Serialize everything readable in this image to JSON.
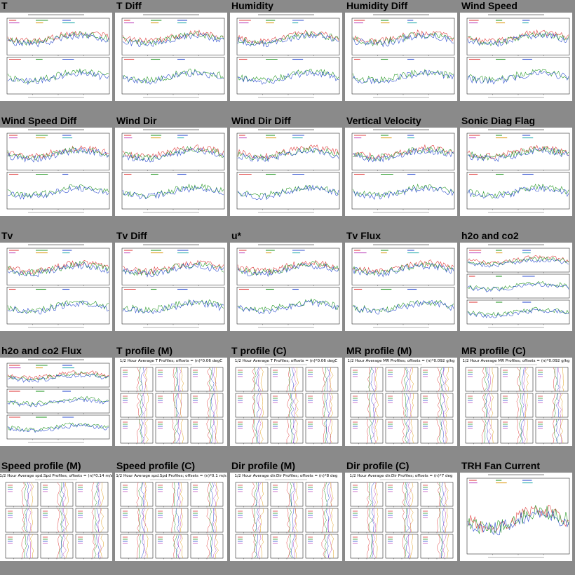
{
  "panels": [
    {
      "title": "T",
      "kind": "ts2"
    },
    {
      "title": "T Diff",
      "kind": "ts2"
    },
    {
      "title": "Humidity",
      "kind": "ts2"
    },
    {
      "title": "Humidity Diff",
      "kind": "ts2"
    },
    {
      "title": "Wind Speed",
      "kind": "ts2"
    },
    {
      "title": "Wind Speed Diff",
      "kind": "ts2"
    },
    {
      "title": "Wind Dir",
      "kind": "ts2"
    },
    {
      "title": "Wind Dir Diff",
      "kind": "ts2"
    },
    {
      "title": "Vertical Velocity",
      "kind": "ts2"
    },
    {
      "title": "Sonic Diag Flag",
      "kind": "ts2"
    },
    {
      "title": "Tv",
      "kind": "ts2"
    },
    {
      "title": "Tv Diff",
      "kind": "ts2"
    },
    {
      "title": "u*",
      "kind": "ts2"
    },
    {
      "title": "Tv Flux",
      "kind": "ts2"
    },
    {
      "title": "h2o and co2",
      "kind": "ts3"
    },
    {
      "title": "h2o and co2 Flux",
      "kind": "ts3"
    },
    {
      "title": "T profile (M)",
      "kind": "profile",
      "header": "1/2 Hour Average T Profiles; offsets = (n)*0.06 degC"
    },
    {
      "title": "T profile (C)",
      "kind": "profile",
      "header": "1/2 Hour Average T Profiles; offsets = (n)*0.06 degC"
    },
    {
      "title": "MR profile (M)",
      "kind": "profile",
      "header": "1/2 Hour Average MR Profiles; offsets = (n)*0.092 g/kg"
    },
    {
      "title": "MR profile (C)",
      "kind": "profile",
      "header": "1/2 Hour Average MR Profiles; offsets = (n)*0.092 g/kg"
    },
    {
      "title": "Speed profile (M)",
      "kind": "profile",
      "header": "1/2 Hour Average spd.Spd Profiles; offsets = (n)*0.14 m/s"
    },
    {
      "title": "Speed profile (C)",
      "kind": "profile",
      "header": "1/2 Hour Average spd.Spd Profiles; offsets = (n)*0.1 m/s"
    },
    {
      "title": "Dir profile (M)",
      "kind": "profile",
      "header": "1/2 Hour Average dir.Dir Profiles; offsets = (n)*8 deg"
    },
    {
      "title": "Dir profile (C)",
      "kind": "profile",
      "header": "1/2 Hour Average dir.Dir Profiles; offsets = (n)*7 deg"
    },
    {
      "title": "TRH Fan Current",
      "kind": "ts1"
    }
  ],
  "colors": {
    "background": "#8a8a8a",
    "plot_bg": "#ffffff",
    "series": [
      "#e04040",
      "#2a9a2a",
      "#3050d0",
      "#c050c0",
      "#e0a020",
      "#30b0b0",
      "#707070",
      "#20c0a0"
    ]
  }
}
